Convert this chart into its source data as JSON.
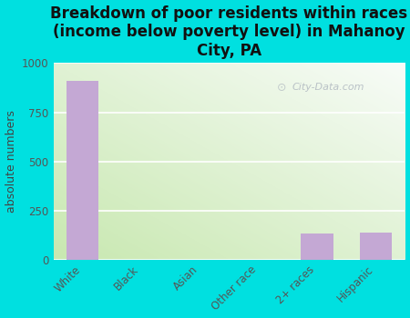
{
  "title": "Breakdown of poor residents within races\n(income below poverty level) in Mahanoy\nCity, PA",
  "categories": [
    "White",
    "Black",
    "Asian",
    "Other race",
    "2+ races",
    "Hispanic"
  ],
  "values": [
    910,
    0,
    0,
    0,
    130,
    135
  ],
  "bar_color": "#c4a8d4",
  "ylabel": "absolute numbers",
  "ylim": [
    0,
    1000
  ],
  "yticks": [
    0,
    250,
    500,
    750,
    1000
  ],
  "background_outer": "#00e0e0",
  "grid_color": "#ffffff",
  "watermark": "City-Data.com",
  "title_fontsize": 12,
  "ylabel_fontsize": 9,
  "tick_fontsize": 8.5,
  "bg_color_topleft": "#e8f5e0",
  "bg_color_topright": "#f8fbf5",
  "bg_color_bottomleft": "#d0ecc0",
  "bg_color_bottomright": "#f0f8f0"
}
